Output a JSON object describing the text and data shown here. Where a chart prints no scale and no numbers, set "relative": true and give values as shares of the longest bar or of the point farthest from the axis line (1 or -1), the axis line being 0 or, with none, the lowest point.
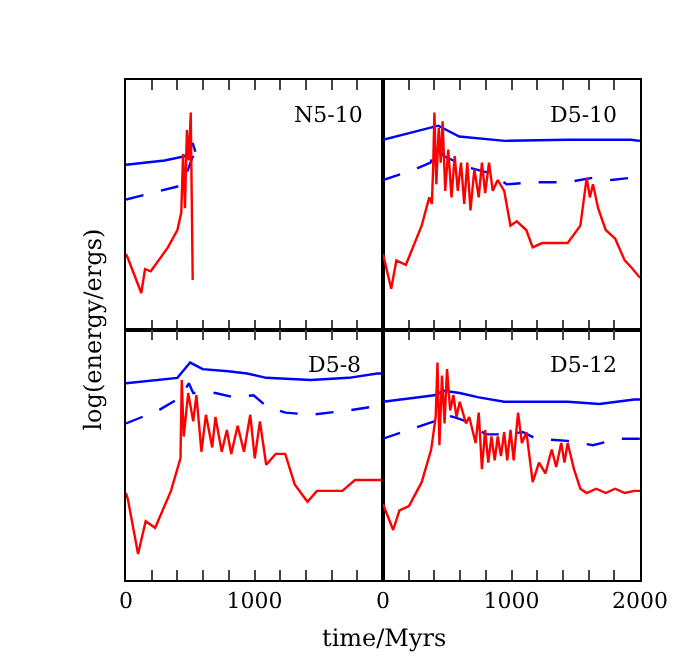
{
  "chart_data": [
    {
      "type": "line",
      "title": "N5-10",
      "ylabel": "log(energy/ergs)",
      "relative": true,
      "xlim": [
        0,
        2000
      ],
      "xticks": [
        {
          "value": 0,
          "label": null
        },
        {
          "value": 200,
          "label": null
        },
        {
          "value": 400,
          "label": null
        },
        {
          "value": 600,
          "label": null
        },
        {
          "value": 800,
          "label": null
        },
        {
          "value": 1000,
          "label": null
        },
        {
          "value": 1200,
          "label": null
        },
        {
          "value": 1400,
          "label": null
        },
        {
          "value": 1600,
          "label": null
        },
        {
          "value": 1800,
          "label": null
        },
        {
          "value": 2000,
          "label": null
        }
      ],
      "tick_labels": false,
      "series": [
        {
          "color": "#0000ff",
          "line_style": "solid",
          "x": [
            0,
            300,
            460,
            519,
            540
          ],
          "values": [
            0.76,
            0.78,
            0.8,
            0.86,
            0.82
          ]
        },
        {
          "color": "#0000ff",
          "line_style": "dashed",
          "x": [
            0,
            200,
            400,
            450,
            490,
            520,
            540
          ],
          "values": [
            0.6,
            0.63,
            0.66,
            0.68,
            0.75,
            0.8,
            0.77
          ]
        },
        {
          "color": "#ff0000",
          "line_style": "solid",
          "x": [
            0,
            15,
            119,
            148,
            193,
            326,
            400,
            430,
            444,
            459,
            474,
            489,
            504,
            519
          ],
          "values": [
            0.35,
            0.33,
            0.17,
            0.28,
            0.27,
            0.38,
            0.46,
            0.54,
            0.81,
            0.56,
            0.92,
            0.78,
            1.0,
            0.23
          ]
        }
      ]
    },
    {
      "type": "line",
      "title": "D5-10",
      "relative": true,
      "xlim": [
        0,
        2000
      ],
      "xticks": [
        {
          "value": 0,
          "label": null
        },
        {
          "value": 200,
          "label": null
        },
        {
          "value": 400,
          "label": null
        },
        {
          "value": 600,
          "label": null
        },
        {
          "value": 800,
          "label": null
        },
        {
          "value": 1000,
          "label": null
        },
        {
          "value": 1200,
          "label": null
        },
        {
          "value": 1400,
          "label": null
        },
        {
          "value": 1600,
          "label": null
        },
        {
          "value": 1800,
          "label": null
        },
        {
          "value": 2000,
          "label": null
        }
      ],
      "tick_labels": false,
      "series": [
        {
          "color": "#0000ff",
          "line_style": "solid",
          "x": [
            0,
            430,
            593,
            948,
            1437,
            1926,
            2000
          ],
          "values": [
            0.875,
            0.94,
            0.89,
            0.87,
            0.875,
            0.875,
            0.87
          ]
        },
        {
          "color": "#0000ff",
          "line_style": "dashed",
          "x": [
            0,
            252,
            370,
            415,
            474,
            652,
            844,
            963,
            1185,
            1437,
            1630,
            1778,
            1926,
            2000
          ],
          "values": [
            0.69,
            0.74,
            0.77,
            0.84,
            0.8,
            0.75,
            0.72,
            0.67,
            0.68,
            0.68,
            0.7,
            0.69,
            0.7,
            0.68
          ]
        },
        {
          "color": "#ff0000",
          "line_style": "solid",
          "x": [
            0,
            64,
            104,
            178,
            301,
            360,
            380,
            390,
            400,
            415,
            434,
            449,
            464,
            484,
            508,
            533,
            558,
            582,
            607,
            632,
            656,
            681,
            711,
            745,
            770,
            795,
            825,
            854,
            893,
            943,
            992,
            1041,
            1115,
            1165,
            1239,
            1338,
            1437,
            1536,
            1585,
            1610,
            1634,
            1674,
            1733,
            1807,
            1881,
            1930,
            2000
          ],
          "values": [
            0.35,
            0.19,
            0.32,
            0.3,
            0.48,
            0.61,
            0.58,
            0.74,
            1.0,
            0.67,
            0.93,
            0.77,
            0.96,
            0.64,
            0.83,
            0.61,
            0.8,
            0.64,
            0.77,
            0.58,
            0.77,
            0.55,
            0.74,
            0.61,
            0.77,
            0.63,
            0.77,
            0.64,
            0.69,
            0.64,
            0.48,
            0.5,
            0.46,
            0.38,
            0.4,
            0.4,
            0.4,
            0.48,
            0.7,
            0.61,
            0.67,
            0.56,
            0.46,
            0.42,
            0.32,
            0.29,
            0.24
          ]
        }
      ]
    },
    {
      "type": "line",
      "title": "D5-8",
      "xlabel": "time/Myrs",
      "relative": true,
      "xlim": [
        0,
        2000
      ],
      "xticks": [
        0,
        {
          "value": 200,
          "label": null
        },
        {
          "value": 400,
          "label": null
        },
        {
          "value": 600,
          "label": null
        },
        {
          "value": 800,
          "label": null
        },
        1000,
        {
          "value": 1200,
          "label": null
        },
        {
          "value": 1400,
          "label": null
        },
        {
          "value": 1600,
          "label": null
        },
        {
          "value": 1800,
          "label": null
        },
        {
          "value": 2000,
          "label": null
        }
      ],
      "tick_labels": "x",
      "series": [
        {
          "color": "#0000ff",
          "line_style": "solid",
          "x": [
            0,
            400,
            499,
            597,
            795,
            943,
            1091,
            1437,
            1733,
            1955,
            2000
          ],
          "values": [
            0.905,
            0.93,
            1.0,
            0.97,
            0.96,
            0.95,
            0.93,
            0.92,
            0.93,
            0.95,
            0.95
          ]
        },
        {
          "color": "#0000ff",
          "line_style": "dashed",
          "x": [
            0,
            252,
            425,
            489,
            523,
            696,
            844,
            992,
            1091,
            1240,
            1437,
            1733,
            1955,
            2000
          ],
          "values": [
            0.72,
            0.78,
            0.84,
            0.905,
            0.86,
            0.86,
            0.84,
            0.85,
            0.8,
            0.77,
            0.76,
            0.78,
            0.8,
            0.8
          ]
        },
        {
          "color": "#ff0000",
          "line_style": "solid",
          "x": [
            0,
            15,
            94,
            153,
            227,
            350,
            424,
            434,
            449,
            484,
            523,
            548,
            587,
            622,
            671,
            696,
            745,
            785,
            819,
            869,
            918,
            967,
            1002,
            1042,
            1091,
            1165,
            1239,
            1313,
            1412,
            1486,
            1585,
            1684,
            1782,
            1856,
            1955,
            2000
          ],
          "values": [
            0.4,
            0.37,
            0.12,
            0.27,
            0.24,
            0.41,
            0.56,
            0.92,
            0.66,
            0.86,
            0.73,
            0.85,
            0.59,
            0.76,
            0.61,
            0.75,
            0.59,
            0.69,
            0.58,
            0.71,
            0.59,
            0.76,
            0.56,
            0.73,
            0.53,
            0.58,
            0.58,
            0.44,
            0.36,
            0.41,
            0.41,
            0.41,
            0.46,
            0.46,
            0.46,
            0.46
          ]
        }
      ]
    },
    {
      "type": "line",
      "title": "D5-12",
      "relative": true,
      "xlim": [
        0,
        2000
      ],
      "xticks": [
        0,
        {
          "value": 200,
          "label": null
        },
        {
          "value": 400,
          "label": null
        },
        {
          "value": 600,
          "label": null
        },
        {
          "value": 800,
          "label": null
        },
        1000,
        {
          "value": 1200,
          "label": null
        },
        {
          "value": 1400,
          "label": null
        },
        {
          "value": 1600,
          "label": null
        },
        {
          "value": 1800,
          "label": null
        },
        2000
      ],
      "tick_labels": "x",
      "series": [
        {
          "color": "#0000ff",
          "line_style": "solid",
          "x": [
            0,
            400,
            474,
            597,
            745,
            943,
            1239,
            1437,
            1684,
            1955,
            2000
          ],
          "values": [
            0.82,
            0.85,
            0.87,
            0.86,
            0.84,
            0.82,
            0.82,
            0.82,
            0.81,
            0.83,
            0.83
          ]
        },
        {
          "color": "#0000ff",
          "line_style": "dashed",
          "x": [
            0,
            252,
            400,
            474,
            548,
            696,
            795,
            943,
            1091,
            1190,
            1437,
            1634,
            1832,
            1955,
            2000
          ],
          "values": [
            0.65,
            0.7,
            0.73,
            0.76,
            0.75,
            0.72,
            0.67,
            0.67,
            0.68,
            0.65,
            0.64,
            0.62,
            0.65,
            0.65,
            0.65
          ]
        },
        {
          "color": "#ff0000",
          "line_style": "solid",
          "x": [
            0,
            79,
            128,
            202,
            301,
            375,
            410,
            424,
            439,
            459,
            479,
            498,
            523,
            548,
            572,
            597,
            646,
            671,
            721,
            745,
            770,
            795,
            819,
            844,
            869,
            893,
            918,
            943,
            967,
            992,
            1017,
            1051,
            1081,
            1116,
            1165,
            1214,
            1264,
            1313,
            1348,
            1387,
            1412,
            1437,
            1486,
            1536,
            1585,
            1659,
            1733,
            1807,
            1881,
            1955,
            2000
          ],
          "values": [
            0.35,
            0.23,
            0.32,
            0.34,
            0.45,
            0.6,
            0.75,
            1.0,
            0.62,
            0.94,
            0.72,
            0.97,
            0.78,
            0.85,
            0.75,
            0.82,
            0.72,
            0.75,
            0.63,
            0.77,
            0.51,
            0.69,
            0.54,
            0.66,
            0.55,
            0.66,
            0.57,
            0.68,
            0.55,
            0.69,
            0.55,
            0.77,
            0.63,
            0.68,
            0.45,
            0.54,
            0.49,
            0.6,
            0.52,
            0.63,
            0.54,
            0.63,
            0.51,
            0.42,
            0.4,
            0.42,
            0.4,
            0.42,
            0.4,
            0.41,
            0.41
          ]
        }
      ]
    }
  ]
}
